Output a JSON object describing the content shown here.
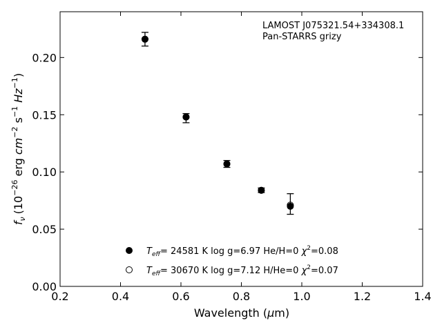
{
  "chart_data": {
    "type": "scatter",
    "annotation": [
      "LAMOST J075321.54+334308.1",
      "Pan-STARRS grizy"
    ],
    "xlabel": {
      "text": "Wavelength (",
      "sym": "μ",
      "rest": "m)"
    },
    "ylabel": {
      "text": "(10",
      "exp1": "−26",
      "mid1": " erg ",
      "cm": "cm",
      "exp2": "−2",
      "mid2": " s",
      "exp3": "−1",
      "hz": " Hz",
      "exp4": "−1",
      "close": ")",
      "sym": "f",
      "sub": "ν"
    },
    "xlim": [
      0.2,
      1.4
    ],
    "ylim": [
      0.0,
      0.24
    ],
    "xticks": [
      0.2,
      0.4,
      0.6,
      0.8,
      1.0,
      1.2,
      1.4
    ],
    "xtick_labels": [
      "0.2",
      "0.4",
      "0.6",
      "0.8",
      "1.0",
      "1.2",
      "1.4"
    ],
    "yticks": [
      0.0,
      0.05,
      0.1,
      0.15,
      0.2
    ],
    "ytick_labels": [
      "0.00",
      "0.05",
      "0.10",
      "0.15",
      "0.20"
    ],
    "grid": false,
    "legend_position": "bottom-center",
    "observed": {
      "x": [
        0.481,
        0.617,
        0.752,
        0.866,
        0.962
      ],
      "y": [
        0.216,
        0.147,
        0.107,
        0.084,
        0.072
      ],
      "yerr": [
        0.006,
        0.004,
        0.003,
        0.002,
        0.009
      ]
    },
    "series": [
      {
        "marker": "filled",
        "color": "#000000",
        "legend": {
          "t": "T",
          "eff": "eff",
          "text": "= 24581 K  log g=6.97  He/H=0  ",
          "chi": "χ",
          "sq": "2",
          "tail": "=0.08"
        },
        "x": [
          0.481,
          0.617,
          0.752,
          0.866,
          0.962
        ],
        "y": [
          0.216,
          0.148,
          0.107,
          0.084,
          0.07
        ]
      },
      {
        "marker": "open",
        "color": "#000000",
        "legend": {
          "t": "T",
          "eff": "eff",
          "text": "= 30670 K  log g=7.12  H/He=0  ",
          "chi": "χ",
          "sq": "2",
          "tail": "=0.07"
        },
        "x": [
          0.481,
          0.617,
          0.752,
          0.866,
          0.962
        ],
        "y": [
          0.216,
          0.148,
          0.107,
          0.084,
          0.071
        ]
      }
    ]
  }
}
